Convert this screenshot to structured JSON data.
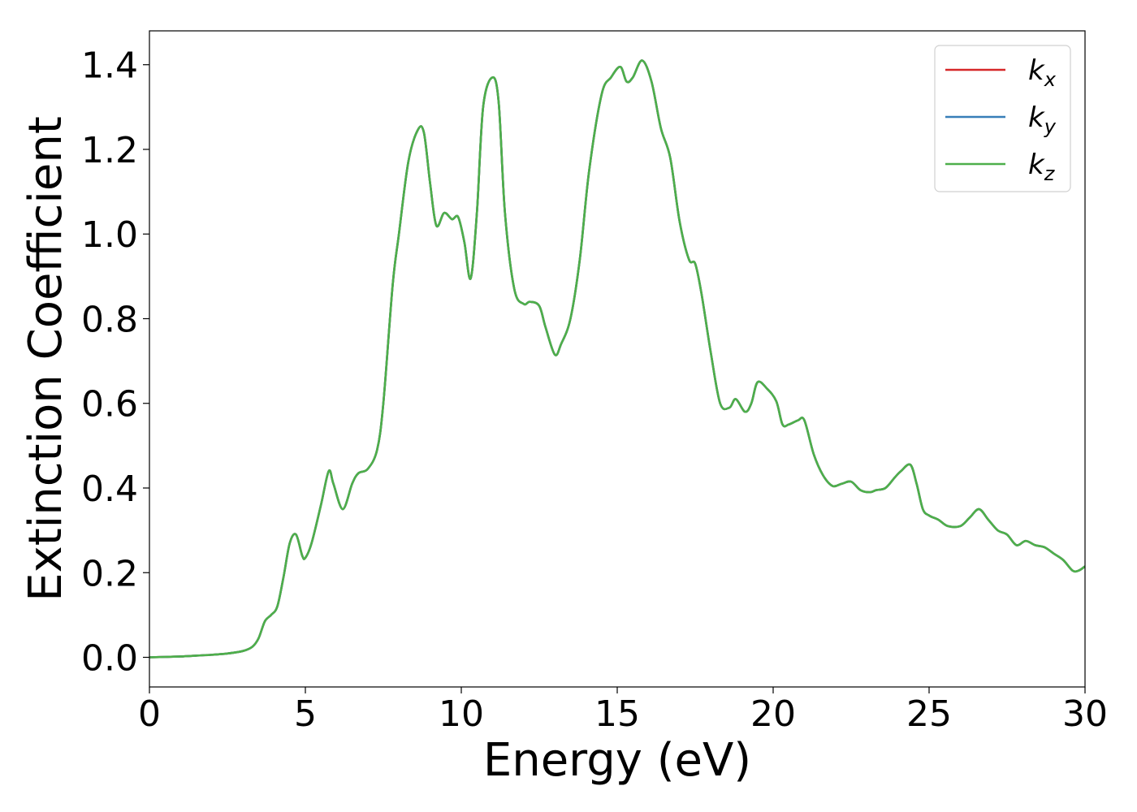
{
  "chart_data": {
    "type": "line",
    "xlabel": "Energy (eV)",
    "ylabel": "Extinction Coefficient",
    "xlim": [
      0,
      30
    ],
    "ylim": [
      -0.07,
      1.48
    ],
    "xticks": [
      "0",
      "5",
      "10",
      "15",
      "20",
      "25",
      "30"
    ],
    "yticks": [
      "0.0",
      "0.2",
      "0.4",
      "0.6",
      "0.8",
      "1.0",
      "1.2",
      "1.4"
    ],
    "grid": false,
    "legend_position": "top-right",
    "x": [
      0,
      0.5,
      1,
      1.5,
      2,
      2.5,
      3,
      3.3,
      3.5,
      3.7,
      3.9,
      4.1,
      4.3,
      4.5,
      4.7,
      4.9,
      5.0,
      5.2,
      5.5,
      5.75,
      5.9,
      6.2,
      6.5,
      6.7,
      7.0,
      7.3,
      7.5,
      7.8,
      8.0,
      8.3,
      8.6,
      8.8,
      9.0,
      9.2,
      9.45,
      9.7,
      9.9,
      10.1,
      10.3,
      10.5,
      10.7,
      11.0,
      11.2,
      11.4,
      11.7,
      12.0,
      12.2,
      12.5,
      12.7,
      13.0,
      13.2,
      13.5,
      13.8,
      14.1,
      14.5,
      14.8,
      15.1,
      15.3,
      15.5,
      15.8,
      16.1,
      16.4,
      16.7,
      17.0,
      17.3,
      17.5,
      17.7,
      18.0,
      18.3,
      18.6,
      18.8,
      19.1,
      19.3,
      19.5,
      19.8,
      20.1,
      20.3,
      20.5,
      20.8,
      21.0,
      21.3,
      21.6,
      21.9,
      22.2,
      22.5,
      22.8,
      23.1,
      23.3,
      23.6,
      23.9,
      24.1,
      24.4,
      24.6,
      24.8,
      25.0,
      25.3,
      25.6,
      26.0,
      26.3,
      26.6,
      26.9,
      27.2,
      27.5,
      27.8,
      28.1,
      28.4,
      28.7,
      29.0,
      29.3,
      29.6,
      29.8,
      30.0
    ],
    "series": [
      {
        "name": "k_x",
        "color": "#d62728",
        "values": [
          0.0,
          0.001,
          0.002,
          0.004,
          0.006,
          0.009,
          0.015,
          0.025,
          0.045,
          0.085,
          0.1,
          0.12,
          0.19,
          0.27,
          0.29,
          0.24,
          0.235,
          0.27,
          0.36,
          0.44,
          0.41,
          0.35,
          0.41,
          0.435,
          0.445,
          0.49,
          0.6,
          0.88,
          1.0,
          1.17,
          1.245,
          1.24,
          1.12,
          1.02,
          1.05,
          1.035,
          1.04,
          0.98,
          0.895,
          1.05,
          1.3,
          1.37,
          1.31,
          1.05,
          0.87,
          0.835,
          0.84,
          0.83,
          0.78,
          0.715,
          0.74,
          0.8,
          0.94,
          1.15,
          1.33,
          1.37,
          1.395,
          1.36,
          1.37,
          1.41,
          1.36,
          1.25,
          1.18,
          1.03,
          0.94,
          0.93,
          0.86,
          0.72,
          0.6,
          0.59,
          0.61,
          0.58,
          0.6,
          0.65,
          0.635,
          0.605,
          0.55,
          0.55,
          0.56,
          0.56,
          0.48,
          0.43,
          0.405,
          0.41,
          0.415,
          0.395,
          0.39,
          0.395,
          0.4,
          0.425,
          0.44,
          0.455,
          0.41,
          0.35,
          0.335,
          0.325,
          0.31,
          0.31,
          0.33,
          0.35,
          0.325,
          0.3,
          0.29,
          0.265,
          0.275,
          0.265,
          0.26,
          0.245,
          0.23,
          0.205,
          0.205,
          0.215
        ]
      },
      {
        "name": "k_y",
        "color": "#377eb8",
        "values": [
          0.0,
          0.001,
          0.002,
          0.004,
          0.006,
          0.009,
          0.015,
          0.025,
          0.045,
          0.085,
          0.1,
          0.12,
          0.19,
          0.27,
          0.29,
          0.24,
          0.235,
          0.27,
          0.36,
          0.44,
          0.41,
          0.35,
          0.41,
          0.435,
          0.445,
          0.49,
          0.6,
          0.88,
          1.0,
          1.17,
          1.245,
          1.24,
          1.12,
          1.02,
          1.05,
          1.035,
          1.04,
          0.98,
          0.895,
          1.05,
          1.3,
          1.37,
          1.31,
          1.05,
          0.87,
          0.835,
          0.84,
          0.83,
          0.78,
          0.715,
          0.74,
          0.8,
          0.94,
          1.15,
          1.33,
          1.37,
          1.395,
          1.36,
          1.37,
          1.41,
          1.36,
          1.25,
          1.18,
          1.03,
          0.94,
          0.93,
          0.86,
          0.72,
          0.6,
          0.59,
          0.61,
          0.58,
          0.6,
          0.65,
          0.635,
          0.605,
          0.55,
          0.55,
          0.56,
          0.56,
          0.48,
          0.43,
          0.405,
          0.41,
          0.415,
          0.395,
          0.39,
          0.395,
          0.4,
          0.425,
          0.44,
          0.455,
          0.41,
          0.35,
          0.335,
          0.325,
          0.31,
          0.31,
          0.33,
          0.35,
          0.325,
          0.3,
          0.29,
          0.265,
          0.275,
          0.265,
          0.26,
          0.245,
          0.23,
          0.205,
          0.205,
          0.215
        ]
      },
      {
        "name": "k_z",
        "color": "#4daf4a",
        "values": [
          0.0,
          0.001,
          0.002,
          0.004,
          0.006,
          0.009,
          0.015,
          0.025,
          0.045,
          0.085,
          0.1,
          0.12,
          0.19,
          0.27,
          0.29,
          0.24,
          0.235,
          0.27,
          0.36,
          0.44,
          0.41,
          0.35,
          0.41,
          0.435,
          0.445,
          0.49,
          0.6,
          0.88,
          1.0,
          1.17,
          1.245,
          1.24,
          1.12,
          1.02,
          1.05,
          1.035,
          1.04,
          0.98,
          0.895,
          1.05,
          1.3,
          1.37,
          1.31,
          1.05,
          0.87,
          0.835,
          0.84,
          0.83,
          0.78,
          0.715,
          0.74,
          0.8,
          0.94,
          1.15,
          1.33,
          1.37,
          1.395,
          1.36,
          1.37,
          1.41,
          1.36,
          1.25,
          1.18,
          1.03,
          0.94,
          0.93,
          0.86,
          0.72,
          0.6,
          0.59,
          0.61,
          0.58,
          0.6,
          0.65,
          0.635,
          0.605,
          0.55,
          0.55,
          0.56,
          0.56,
          0.48,
          0.43,
          0.405,
          0.41,
          0.415,
          0.395,
          0.39,
          0.395,
          0.4,
          0.425,
          0.44,
          0.455,
          0.41,
          0.35,
          0.335,
          0.325,
          0.31,
          0.31,
          0.33,
          0.35,
          0.325,
          0.3,
          0.29,
          0.265,
          0.275,
          0.265,
          0.26,
          0.245,
          0.23,
          0.205,
          0.205,
          0.215
        ]
      }
    ],
    "legend": [
      {
        "base": "k",
        "sub": "x",
        "color": "#d62728"
      },
      {
        "base": "k",
        "sub": "y",
        "color": "#377eb8"
      },
      {
        "base": "k",
        "sub": "z",
        "color": "#4daf4a"
      }
    ]
  }
}
